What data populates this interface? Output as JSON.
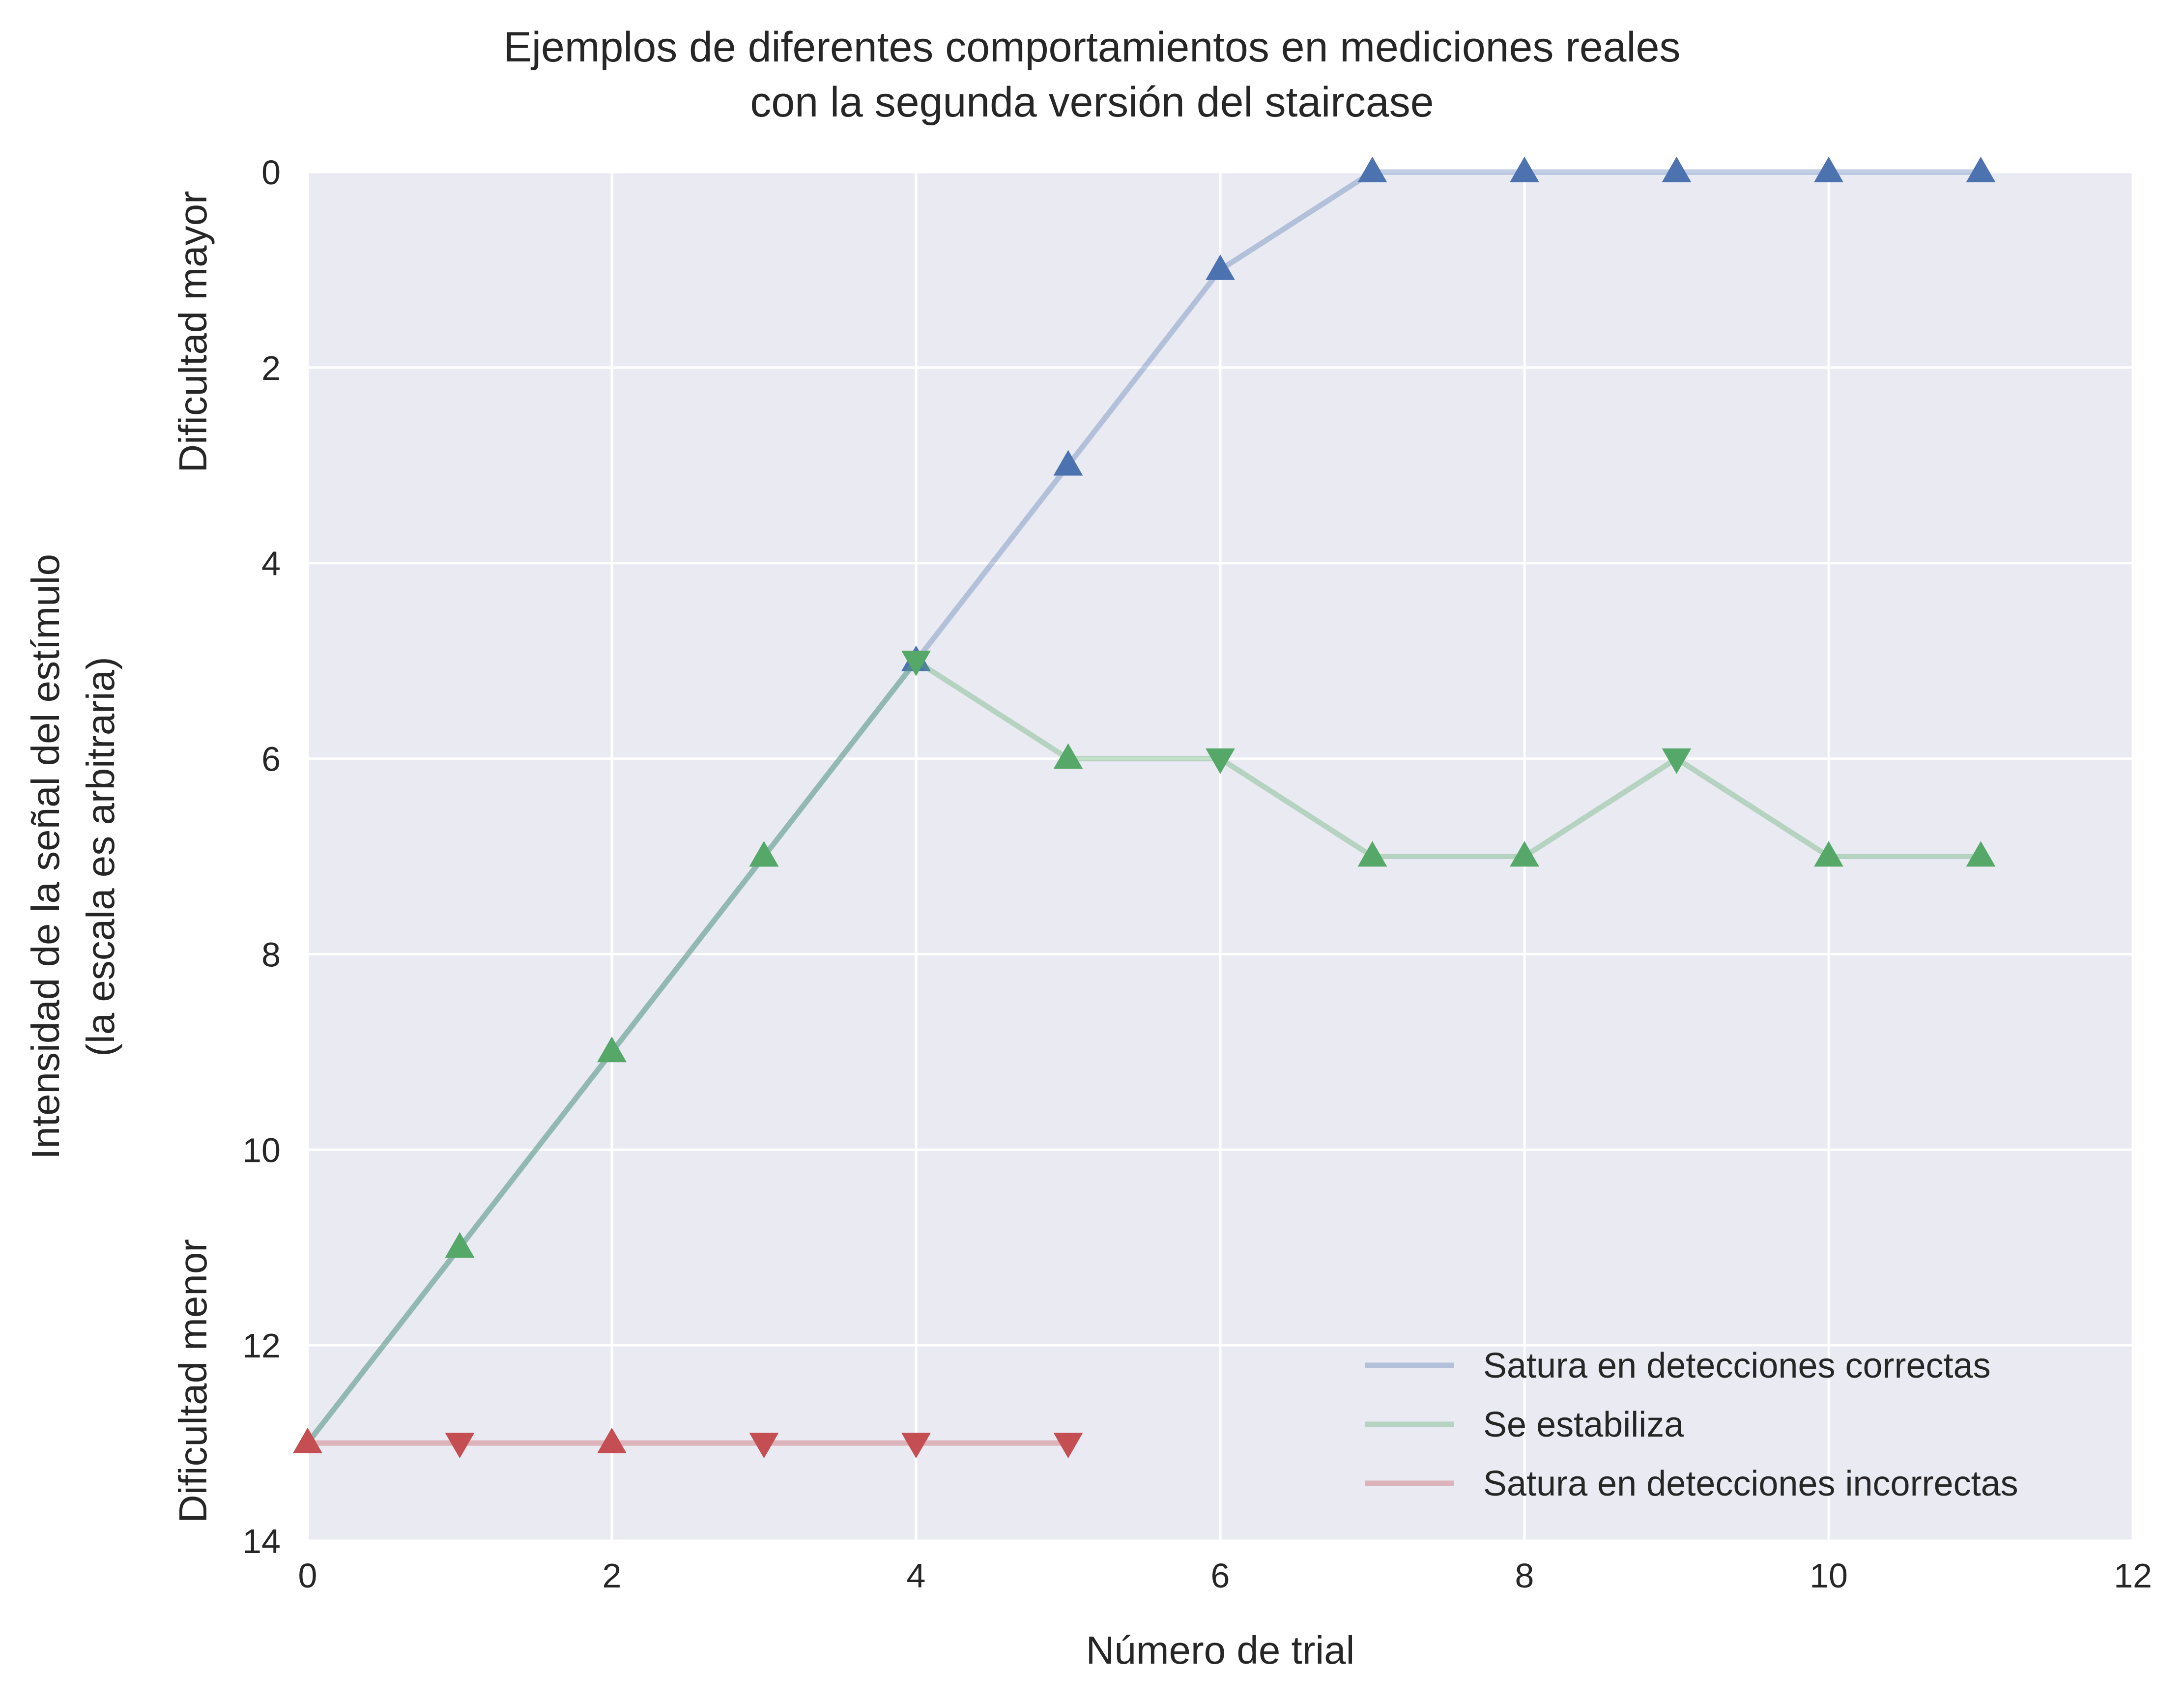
{
  "chart_data": {
    "type": "line",
    "title": "Ejemplos de diferentes comportamientos en mediciones reales\ncon la segunda versión del staircase",
    "xlabel": "Número de trial",
    "ylabel": "Intensidad de la señal del estímulo\n(la escala es arbitraria)",
    "y_annotations": {
      "top": "Dificultad mayor",
      "bottom": "Dificultad menor"
    },
    "xlim": [
      0,
      12
    ],
    "ylim": [
      0,
      14
    ],
    "y_inverted": true,
    "x_ticks": [
      0,
      2,
      4,
      6,
      8,
      10,
      12
    ],
    "y_ticks": [
      0,
      2,
      4,
      6,
      8,
      10,
      12,
      14
    ],
    "grid": true,
    "legend_position": "lower-right",
    "background_color": "#EAEAF2",
    "series": [
      {
        "name": "Satura en detecciones correctas",
        "color": "#4C72B0",
        "x": [
          0,
          1,
          2,
          3,
          4,
          5,
          6,
          7,
          8,
          9,
          10,
          11
        ],
        "y": [
          13,
          11,
          9,
          7,
          5,
          3,
          1,
          0,
          0,
          0,
          0,
          0
        ],
        "markers": [
          "up",
          "up",
          "up",
          "up",
          "up",
          "up",
          "up",
          "up",
          "up",
          "up",
          "up",
          "up"
        ]
      },
      {
        "name": "Se estabiliza",
        "color": "#55A868",
        "x": [
          0,
          1,
          2,
          3,
          4,
          5,
          6,
          7,
          8,
          9,
          10,
          11
        ],
        "y": [
          13,
          11,
          9,
          7,
          5,
          6,
          6,
          7,
          7,
          6,
          7,
          7
        ],
        "markers": [
          "up",
          "up",
          "up",
          "up",
          "down",
          "up",
          "down",
          "up",
          "up",
          "down",
          "up",
          "up"
        ]
      },
      {
        "name": "Satura en detecciones incorrectas",
        "color": "#C44E52",
        "x": [
          0,
          1,
          2,
          3,
          4,
          5
        ],
        "y": [
          13,
          13,
          13,
          13,
          13,
          13
        ],
        "markers": [
          "up",
          "down",
          "up",
          "down",
          "down",
          "down"
        ]
      }
    ]
  }
}
